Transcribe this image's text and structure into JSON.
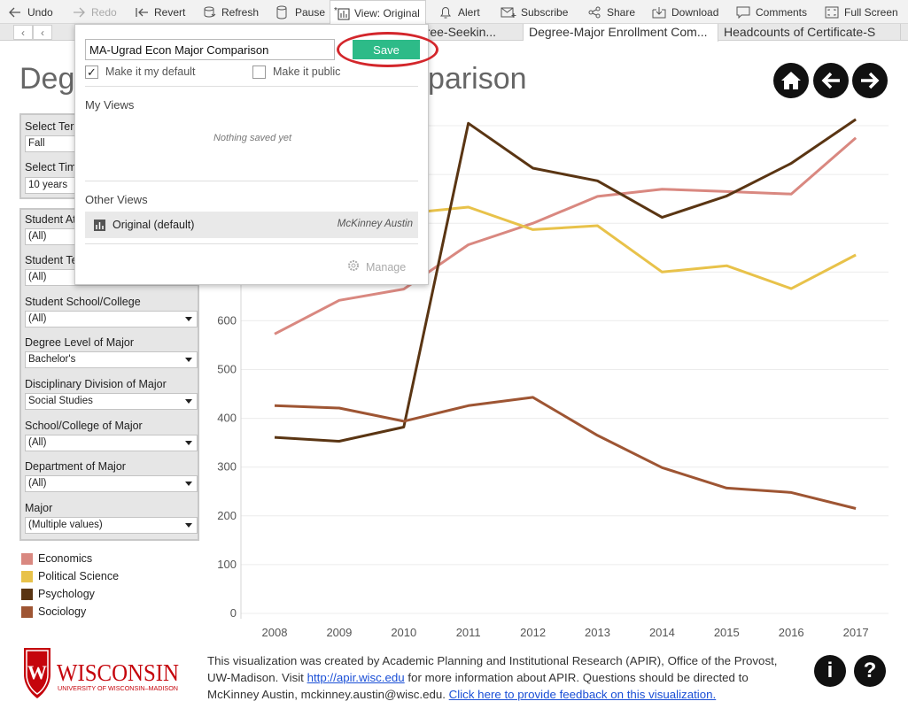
{
  "toolbar": {
    "undo": "Undo",
    "redo": "Redo",
    "revert": "Revert",
    "refresh": "Refresh",
    "pause": "Pause",
    "view": "View: Original",
    "alert": "Alert",
    "subscribe": "Subscribe",
    "share": "Share",
    "download": "Download",
    "comments": "Comments",
    "fullscreen": "Full Screen"
  },
  "tabs": [
    {
      "label": "Degree-Seekin...",
      "active": false
    },
    {
      "label": "Degree-Major Enrollment Com...",
      "active": true
    },
    {
      "label": "Headcounts of Certificate-S",
      "active": false
    }
  ],
  "page": {
    "title": "Degree-Major Enrollment Comparison"
  },
  "filters": {
    "term_label": "Select Term",
    "term_value": "Fall",
    "time_label": "Select Time Period",
    "time_value": "10 years",
    "items": [
      {
        "label": "Student Attribute",
        "value": "(All)"
      },
      {
        "label": "Student Term",
        "value": "(All)"
      },
      {
        "label": "Student School/College",
        "value": "(All)"
      },
      {
        "label": "Degree Level of Major",
        "value": "Bachelor's"
      },
      {
        "label": "Disciplinary Division of Major",
        "value": "Social Studies"
      },
      {
        "label": "School/College of Major",
        "value": "(All)"
      },
      {
        "label": "Department of Major",
        "value": "(All)"
      },
      {
        "label": "Major",
        "value": "(Multiple values)"
      }
    ]
  },
  "popup": {
    "view_name": "MA-Ugrad Econ Major Comparison",
    "save": "Save",
    "default_label": "Make it my default",
    "default_checked": true,
    "public_label": "Make it public",
    "public_checked": false,
    "my_views": "My Views",
    "nothing": "Nothing saved yet",
    "other_views": "Other Views",
    "original": "Original (default)",
    "owner": "McKinney Austin",
    "manage": "Manage"
  },
  "chart_data": {
    "type": "line",
    "x": [
      2008,
      2009,
      2010,
      2011,
      2012,
      2013,
      2014,
      2015,
      2016,
      2017
    ],
    "ylim": [
      0,
      1040
    ],
    "yticks": [
      0,
      100,
      200,
      300,
      400,
      500,
      600,
      700
    ],
    "grid": true,
    "series": [
      {
        "name": "Economics",
        "color": "#d98880",
        "values": [
          573,
          642,
          665,
          756,
          800,
          855,
          870,
          865,
          860,
          975
        ]
      },
      {
        "name": "Political Science",
        "color": "#e8c24a",
        "values": [
          null,
          null,
          820,
          833,
          787,
          795,
          700,
          713,
          666,
          735
        ]
      },
      {
        "name": "Psychology",
        "color": "#5a3513",
        "values": [
          361,
          353,
          382,
          1005,
          913,
          887,
          812,
          856,
          923,
          1013
        ]
      },
      {
        "name": "Sociology",
        "color": "#9e5533",
        "values": [
          426,
          421,
          394,
          426,
          443,
          365,
          299,
          257,
          248,
          215
        ]
      }
    ]
  },
  "footer": {
    "logo_text": "WISCONSIN",
    "logo_sub": "UNIVERSITY OF WISCONSIN–MADISON",
    "text1": "This visualization was created by Academic Planning and Institutional Research (APIR), Office of the Provost, UW-Madison. Visit ",
    "link": "http://apir.wisc.edu",
    "text2": " for more information about APIR. Questions should be directed to McKinney Austin, mckinney.austin@wisc.edu. ",
    "feedback": "Click here to provide feedback on this visualization."
  }
}
